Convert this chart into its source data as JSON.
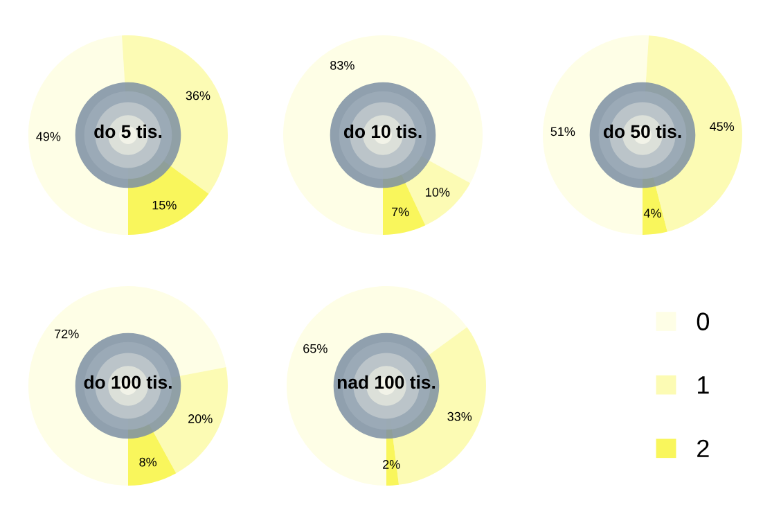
{
  "chart_data": [
    {
      "type": "donut",
      "title": "do 5 tis.",
      "categories": [
        "0",
        "1",
        "2"
      ],
      "values": [
        49,
        36,
        15
      ],
      "colors": [
        "#fefee6",
        "#fcfbb4",
        "#f9f65c"
      ],
      "value_labels": [
        "49%",
        "36%",
        "15%"
      ],
      "legend": "bottom right"
    },
    {
      "type": "donut",
      "title": "do 10 tis.",
      "categories": [
        null,
        null,
        null
      ],
      "values": [
        83,
        10,
        7
      ],
      "colors": [
        "#fefee6",
        "#fcfbb4",
        "#f9f65c"
      ],
      "value_labels": [
        "83%",
        "10%",
        "7%"
      ]
    },
    {
      "type": "donut",
      "title": "do 50 tis.",
      "categories": [
        null,
        null,
        null
      ],
      "values": [
        51,
        45,
        4
      ],
      "colors": [
        "#fefee6",
        "#fcfbb4",
        "#f9f65c"
      ],
      "value_labels": [
        "51%",
        "45%",
        "4%"
      ]
    },
    {
      "type": "donut",
      "title": "do 100 tis.",
      "categories": [
        null,
        null,
        null
      ],
      "values": [
        72,
        20,
        8
      ],
      "colors": [
        "#fefee6",
        "#fcfbb4",
        "#f9f65c"
      ],
      "value_labels": [
        "72%",
        "20%",
        "8%"
      ]
    },
    {
      "type": "donut",
      "title": "nad 100 tis.",
      "categories": [
        null,
        null,
        null
      ],
      "values": [
        65,
        33,
        2
      ],
      "colors": [
        "#fefee6",
        "#fcfbb4",
        "#f9f65c"
      ],
      "value_labels": [
        "65%",
        "33%",
        "2%"
      ]
    }
  ]
}
